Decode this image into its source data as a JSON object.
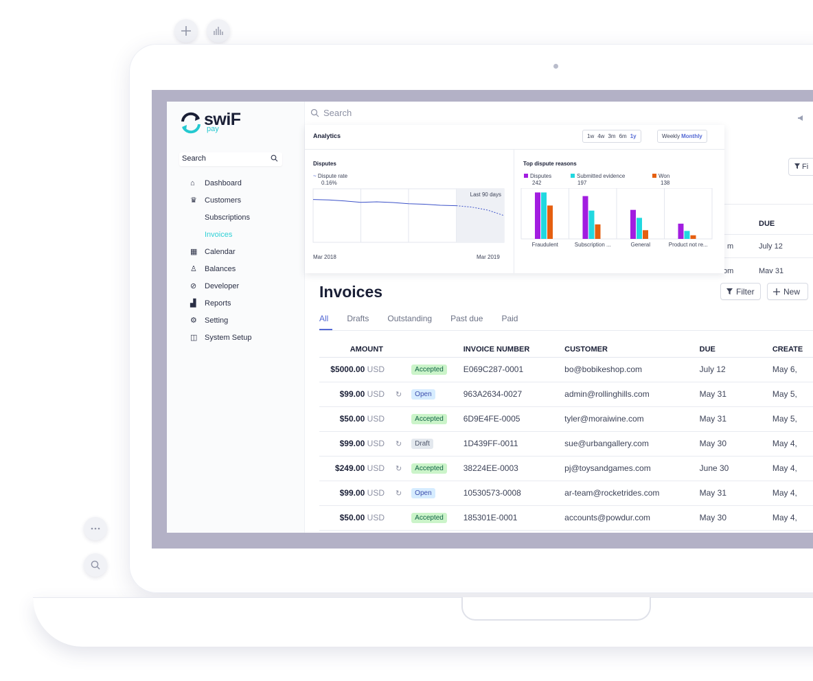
{
  "floating": {
    "add_icon": "plus-icon",
    "chart_icon": "bar-chart-icon",
    "more_icon": "more-dots-icon",
    "search_icon": "search-icon"
  },
  "colors": {
    "accent": "#5469d4",
    "brand_teal": "#2fd0d6",
    "disputes": "#a21de0",
    "submitted": "#21d8e0",
    "won": "#e55f10",
    "bezel": "#b3b1c6"
  },
  "sidebar": {
    "logo_word": "swiF",
    "logo_sub": "pay",
    "search_label": "Search",
    "items": [
      {
        "label": "Dashboard",
        "icon": "⌂"
      },
      {
        "label": "Customers",
        "icon": "♛"
      },
      {
        "label": "Subscriptions",
        "icon": ""
      },
      {
        "label": "Invoices",
        "icon": ""
      },
      {
        "label": "Calendar",
        "icon": "▦"
      },
      {
        "label": "Balances",
        "icon": "♙"
      },
      {
        "label": "Developer",
        "icon": "⊘"
      },
      {
        "label": "Reports",
        "icon": "▟"
      },
      {
        "label": "Setting",
        "icon": "⚙"
      },
      {
        "label": "System Setup",
        "icon": "◫"
      }
    ]
  },
  "topbar": {
    "search_placeholder": "Search"
  },
  "analytics": {
    "title": "Analytics",
    "ranges": [
      "1w",
      "4w",
      "3m",
      "6m",
      "1y"
    ],
    "active_range": "1y",
    "granularity": [
      "Weekly",
      "Monthly"
    ],
    "active_granularity": "Monthly",
    "disputes_pane": {
      "title": "Disputes",
      "legend_label": "Dispute rate",
      "legend_value": "0.16%",
      "highlight_label": "Last 90 days",
      "x_start": "Mar 2018",
      "x_end": "Mar 2019"
    },
    "reasons_pane": {
      "title": "Top dispute reasons",
      "legend": [
        {
          "name": "Disputes",
          "value": "242"
        },
        {
          "name": "Submitted evidence",
          "value": "197"
        },
        {
          "name": "Won",
          "value": "138"
        }
      ]
    }
  },
  "chart_data": [
    {
      "type": "line",
      "title": "Disputes",
      "series": [
        {
          "name": "Dispute rate",
          "values": [
            0.2,
            0.198,
            0.193,
            0.187,
            0.189,
            0.186,
            0.18,
            0.178,
            0.173,
            0.171,
            0.164,
            0.15,
            0.125
          ]
        }
      ],
      "x": [
        "Mar 2018",
        "",
        "",
        "",
        "",
        "",
        "",
        "",
        "",
        "",
        "",
        "",
        "Mar 2019"
      ],
      "ylim": [
        0,
        0.25
      ],
      "annotation": "Last 90 days"
    },
    {
      "type": "bar",
      "title": "Top dispute reasons",
      "categories": [
        "Fraudulent",
        "Subscription ...",
        "General",
        "Product not re..."
      ],
      "series": [
        {
          "name": "Disputes",
          "values": [
            64,
            59,
            40,
            21
          ]
        },
        {
          "name": "Submitted evidence",
          "values": [
            64,
            39,
            29,
            11
          ]
        },
        {
          "name": "Won",
          "values": [
            46,
            20,
            12,
            5
          ]
        }
      ],
      "ylim": [
        0,
        70
      ]
    }
  ],
  "behind": {
    "filter_label": "Fi",
    "due_header": "DUE",
    "row1_customer_tail": "m",
    "row1_due": "July 12",
    "row2_customer_tail": "om",
    "row2_due": "May 31"
  },
  "invoices": {
    "title": "Invoices",
    "filter_label": "Filter",
    "new_label": "New",
    "tabs": [
      "All",
      "Drafts",
      "Outstanding",
      "Past due",
      "Paid"
    ],
    "active_tab": "All",
    "columns": [
      "AMOUNT",
      "INVOICE NUMBER",
      "CUSTOMER",
      "DUE",
      "CREATE"
    ],
    "rows": [
      {
        "amount": "$5000.00",
        "currency": "USD",
        "recurring": "",
        "status": "Accepted",
        "number": "E069C287-0001",
        "customer": "bo@bobikeshop.com",
        "due": "July 12",
        "created": "May 6,"
      },
      {
        "amount": "$99.00",
        "currency": "USD",
        "recurring": "↻",
        "status": "Open",
        "number": "963A2634-0027",
        "customer": "admin@rollinghills.com",
        "due": "May 31",
        "created": "May 5, "
      },
      {
        "amount": "$50.00",
        "currency": "USD",
        "recurring": "",
        "status": "Accepted",
        "number": "6D9E4FE-0005",
        "customer": "tyler@moraiwine.com",
        "due": "May 31",
        "created": "May 5, "
      },
      {
        "amount": "$99.00",
        "currency": "USD",
        "recurring": "↻",
        "status": "Draft",
        "number": "1D439FF-0011",
        "customer": "sue@urbangallery.com",
        "due": "May 30",
        "created": "May 4,"
      },
      {
        "amount": "$249.00",
        "currency": "USD",
        "recurring": "↻",
        "status": "Accepted",
        "number": "38224EE-0003",
        "customer": "pj@toysandgames.com",
        "due": "June 30",
        "created": "May 4,"
      },
      {
        "amount": "$99.00",
        "currency": "USD",
        "recurring": "↻",
        "status": "Open",
        "number": "10530573-0008",
        "customer": "ar-team@rocketrides.com",
        "due": "May 31",
        "created": "May 4,"
      },
      {
        "amount": "$50.00",
        "currency": "USD",
        "recurring": "",
        "status": "Accepted",
        "number": "185301E-0001",
        "customer": "accounts@powdur.com",
        "due": "May 30",
        "created": "May 4,"
      }
    ]
  }
}
